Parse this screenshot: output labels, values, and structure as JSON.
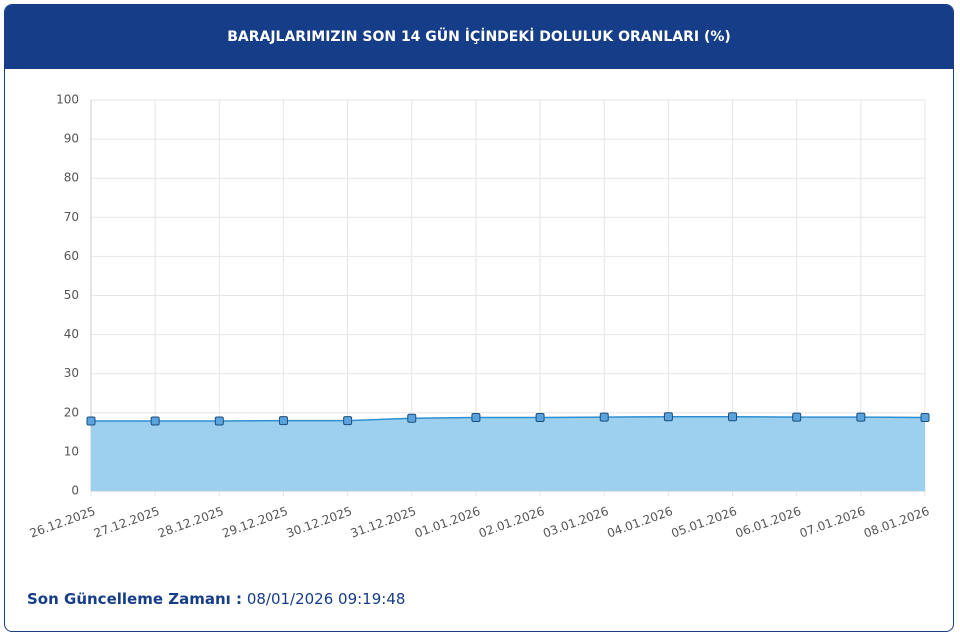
{
  "chart_data": {
    "type": "area",
    "title": "BARAJLARIMIZIN SON 14 GÜN İÇİNDEKİ DOLULUK ORANLARI (%)",
    "categories": [
      "26.12.2025",
      "27.12.2025",
      "28.12.2025",
      "29.12.2025",
      "30.12.2025",
      "31.12.2025",
      "01.01.2026",
      "02.01.2026",
      "03.01.2026",
      "04.01.2026",
      "05.01.2026",
      "06.01.2026",
      "07.01.2026",
      "08.01.2026"
    ],
    "series": [
      {
        "color": "#2f8fd0",
        "fill": "#9dd0ee",
        "values": [
          17.9,
          17.9,
          17.9,
          18.0,
          18.0,
          18.6,
          18.8,
          18.8,
          18.9,
          19.0,
          19.0,
          18.9,
          18.9,
          18.8
        ]
      }
    ],
    "ylim": [
      0,
      100
    ],
    "yticks": [
      0,
      10,
      20,
      30,
      40,
      50,
      60,
      70,
      80,
      90,
      100
    ],
    "grid": true
  },
  "footer": {
    "label": "Son Güncelleme Zamanı :",
    "value": "08/01/2026 09:19:48"
  }
}
